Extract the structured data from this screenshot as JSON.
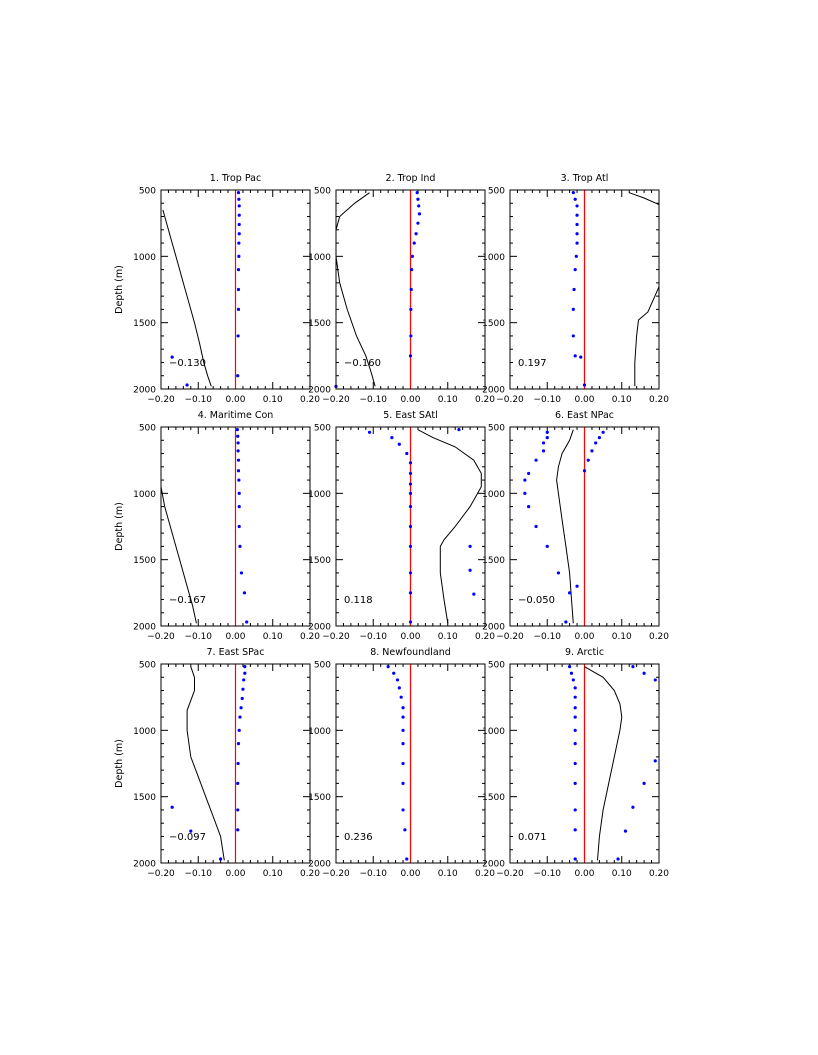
{
  "chart_data": [
    {
      "type": "line",
      "title": "1. Trop Pac",
      "annotation": "−0.130",
      "ylabel": "Depth (m)",
      "xlim": [
        -0.2,
        0.2
      ],
      "ylim": [
        2000,
        500
      ],
      "xticks": [
        "−0.20",
        "−0.10",
        "0.00",
        "0.10",
        "0.20"
      ],
      "yticks": [
        "500",
        "1000",
        "1500",
        "2000"
      ],
      "line": {
        "x": [
          -0.195,
          -0.185,
          -0.17,
          -0.155,
          -0.14,
          -0.125,
          -0.11,
          -0.097,
          -0.085,
          -0.075,
          -0.065
        ],
        "y": [
          650,
          750,
          900,
          1050,
          1200,
          1350,
          1500,
          1650,
          1800,
          1900,
          1980
        ]
      },
      "dots": {
        "x": [
          0.008,
          0.009,
          0.01,
          0.01,
          0.01,
          0.01,
          0.009,
          0.009,
          0.008,
          0.008,
          0.008,
          0.007,
          0.006,
          -0.17,
          -0.13
        ],
        "y": [
          520,
          570,
          620,
          690,
          760,
          830,
          900,
          1000,
          1100,
          1250,
          1400,
          1600,
          1900,
          1760,
          1970
        ]
      }
    },
    {
      "type": "line",
      "title": "2. Trop Ind",
      "annotation": "−0.160",
      "ylabel": "",
      "xlim": [
        -0.2,
        0.2
      ],
      "ylim": [
        2000,
        500
      ],
      "xticks": [
        "−0.20",
        "−0.10",
        "0.00",
        "0.10",
        "0.20"
      ],
      "yticks": [
        "500",
        "1000",
        "1500",
        "2000"
      ],
      "line": {
        "x": [
          -0.11,
          -0.15,
          -0.19,
          -0.2,
          -0.2,
          -0.19,
          -0.17,
          -0.145,
          -0.12,
          -0.105,
          -0.095
        ],
        "y": [
          520,
          600,
          700,
          800,
          1000,
          1200,
          1400,
          1600,
          1750,
          1880,
          1980
        ]
      },
      "dots": {
        "x": [
          0.018,
          0.02,
          0.022,
          0.024,
          0.02,
          0.015,
          0.01,
          0.005,
          0.003,
          0.002,
          0.001,
          0.001,
          0.0,
          -0.2
        ],
        "y": [
          520,
          570,
          620,
          680,
          750,
          830,
          900,
          1000,
          1100,
          1250,
          1400,
          1600,
          1750,
          1980
        ]
      }
    },
    {
      "type": "line",
      "title": "3. Trop Atl",
      "annotation": "0.197",
      "ylabel": "",
      "xlim": [
        -0.2,
        0.2
      ],
      "ylim": [
        2000,
        500
      ],
      "xticks": [
        "−0.20",
        "−0.10",
        "0.00",
        "0.10",
        "0.20"
      ],
      "yticks": [
        "500",
        "1000",
        "1500",
        "2000"
      ],
      "line1": {
        "x": [
          0.12,
          0.16,
          0.2
        ],
        "y": [
          520,
          560,
          610
        ]
      },
      "line2": {
        "x": [
          0.2,
          0.17,
          0.145,
          0.14,
          0.135,
          0.135
        ],
        "y": [
          1230,
          1420,
          1480,
          1600,
          1800,
          1980
        ]
      },
      "dots": {
        "x": [
          -0.03,
          -0.025,
          -0.02,
          -0.02,
          -0.02,
          -0.02,
          -0.02,
          -0.022,
          -0.025,
          -0.028,
          -0.03,
          -0.03,
          -0.025,
          -0.01,
          0.0
        ],
        "y": [
          520,
          570,
          620,
          690,
          760,
          830,
          900,
          1000,
          1100,
          1250,
          1400,
          1600,
          1750,
          1760,
          1970
        ]
      }
    },
    {
      "type": "line",
      "title": "4. Maritime Con",
      "annotation": "−0.167",
      "ylabel": "Depth (m)",
      "xlim": [
        -0.2,
        0.2
      ],
      "ylim": [
        2000,
        500
      ],
      "xticks": [
        "−0.20",
        "−0.10",
        "0.00",
        "0.10",
        "0.20"
      ],
      "yticks": [
        "500",
        "1000",
        "1500",
        "2000"
      ],
      "line": {
        "x": [
          -0.2,
          -0.19,
          -0.175,
          -0.16,
          -0.145,
          -0.13,
          -0.115,
          -0.105
        ],
        "y": [
          950,
          1100,
          1250,
          1400,
          1550,
          1700,
          1850,
          1980
        ]
      },
      "dots": {
        "x": [
          0.005,
          0.006,
          0.007,
          0.007,
          0.008,
          0.008,
          0.009,
          0.01,
          0.01,
          0.01,
          0.012,
          0.016,
          0.024,
          0.03
        ],
        "y": [
          520,
          570,
          620,
          680,
          750,
          830,
          900,
          1000,
          1100,
          1250,
          1400,
          1600,
          1750,
          1970
        ]
      }
    },
    {
      "type": "line",
      "title": "5. East SAtl",
      "annotation": "0.118",
      "ylabel": "",
      "xlim": [
        -0.2,
        0.2
      ],
      "ylim": [
        2000,
        500
      ],
      "xticks": [
        "−0.20",
        "−0.10",
        "0.00",
        "0.10",
        "0.20"
      ],
      "yticks": [
        "500",
        "1000",
        "1500",
        "2000"
      ],
      "line": {
        "x": [
          0.02,
          0.06,
          0.12,
          0.17,
          0.19,
          0.19,
          0.16,
          0.12,
          0.09,
          0.08,
          0.08,
          0.09,
          0.1
        ],
        "y": [
          520,
          580,
          650,
          750,
          850,
          950,
          1100,
          1250,
          1350,
          1400,
          1600,
          1800,
          1980
        ]
      },
      "dots": {
        "x": [
          -0.11,
          -0.05,
          -0.03,
          -0.01,
          0.0,
          0.0,
          0.0,
          0.0,
          0.0,
          0.0,
          0.0,
          0.0,
          0.0,
          0.0,
          0.13,
          0.16,
          0.16,
          0.17
        ],
        "y": [
          540,
          580,
          630,
          700,
          770,
          850,
          930,
          1000,
          1100,
          1250,
          1400,
          1600,
          1750,
          1970,
          520,
          1400,
          1580,
          1760
        ]
      }
    },
    {
      "type": "line",
      "title": "6. East NPac",
      "annotation": "−0.050",
      "ylabel": "",
      "xlim": [
        -0.2,
        0.2
      ],
      "ylim": [
        2000,
        500
      ],
      "xticks": [
        "−0.20",
        "−0.10",
        "0.00",
        "0.10",
        "0.20"
      ],
      "yticks": [
        "500",
        "1000",
        "1500",
        "2000"
      ],
      "line": {
        "x": [
          -0.03,
          -0.04,
          -0.06,
          -0.07,
          -0.075,
          -0.07,
          -0.06,
          -0.05,
          -0.04,
          -0.035,
          -0.03
        ],
        "y": [
          520,
          600,
          700,
          800,
          900,
          1000,
          1200,
          1400,
          1600,
          1800,
          1980
        ]
      },
      "dots": {
        "x": [
          -0.1,
          -0.1,
          -0.11,
          -0.11,
          -0.13,
          -0.15,
          -0.16,
          -0.16,
          -0.15,
          -0.13,
          -0.1,
          -0.07,
          -0.04,
          0.05,
          0.04,
          0.03,
          0.02,
          0.01,
          0.0,
          -0.02,
          -0.05
        ],
        "y": [
          540,
          580,
          620,
          680,
          750,
          850,
          900,
          1000,
          1100,
          1250,
          1400,
          1600,
          1750,
          540,
          580,
          620,
          680,
          750,
          830,
          1700,
          1970
        ]
      }
    },
    {
      "type": "line",
      "title": "7. East SPac",
      "annotation": "−0.097",
      "ylabel": "Depth (m)",
      "xlim": [
        -0.2,
        0.2
      ],
      "ylim": [
        2000,
        500
      ],
      "xticks": [
        "−0.20",
        "−0.10",
        "0.00",
        "0.10",
        "0.20"
      ],
      "yticks": [
        "500",
        "1000",
        "1500",
        "2000"
      ],
      "line": {
        "x": [
          -0.12,
          -0.11,
          -0.11,
          -0.13,
          -0.13,
          -0.12,
          -0.1,
          -0.08,
          -0.06,
          -0.04,
          -0.03
        ],
        "y": [
          520,
          600,
          700,
          850,
          1000,
          1200,
          1350,
          1500,
          1650,
          1800,
          1980
        ]
      },
      "dots": {
        "x": [
          0.025,
          0.025,
          0.022,
          0.02,
          0.018,
          0.015,
          0.012,
          0.01,
          0.008,
          0.007,
          0.006,
          0.006,
          0.006,
          -0.17,
          -0.12,
          -0.04
        ],
        "y": [
          520,
          570,
          620,
          690,
          760,
          830,
          900,
          1000,
          1100,
          1250,
          1400,
          1600,
          1750,
          1580,
          1760,
          1970
        ]
      }
    },
    {
      "type": "line",
      "title": "8. Newfoundland",
      "annotation": "0.236",
      "ylabel": "",
      "xlim": [
        -0.2,
        0.2
      ],
      "ylim": [
        2000,
        500
      ],
      "xticks": [
        "−0.20",
        "−0.10",
        "0.00",
        "0.10",
        "0.20"
      ],
      "yticks": [
        "500",
        "1000",
        "1500",
        "2000"
      ],
      "dots": {
        "x": [
          -0.06,
          -0.045,
          -0.035,
          -0.03,
          -0.025,
          -0.02,
          -0.02,
          -0.02,
          -0.02,
          -0.02,
          -0.02,
          -0.02,
          -0.015,
          -0.01
        ],
        "y": [
          520,
          570,
          620,
          680,
          750,
          830,
          900,
          1000,
          1100,
          1250,
          1400,
          1600,
          1750,
          1970
        ]
      }
    },
    {
      "type": "line",
      "title": "9. Arctic",
      "annotation": "0.071",
      "ylabel": "",
      "xlim": [
        -0.2,
        0.2
      ],
      "ylim": [
        2000,
        500
      ],
      "xticks": [
        "−0.20",
        "−0.10",
        "0.00",
        "0.10",
        "0.20"
      ],
      "yticks": [
        "500",
        "1000",
        "1500",
        "2000"
      ],
      "line": {
        "x": [
          0.0,
          0.05,
          0.08,
          0.095,
          0.1,
          0.095,
          0.08,
          0.065,
          0.05,
          0.04,
          0.035
        ],
        "y": [
          520,
          600,
          700,
          800,
          900,
          1000,
          1200,
          1400,
          1600,
          1800,
          1980
        ]
      },
      "dots": {
        "x": [
          -0.04,
          -0.035,
          -0.03,
          -0.025,
          -0.025,
          -0.025,
          -0.025,
          -0.025,
          -0.025,
          -0.025,
          -0.025,
          -0.025,
          -0.025,
          -0.025,
          0.13,
          0.16,
          0.19,
          0.19,
          0.16,
          0.13,
          0.11,
          0.09
        ],
        "y": [
          520,
          570,
          620,
          680,
          750,
          830,
          900,
          1000,
          1100,
          1250,
          1400,
          1600,
          1750,
          1970,
          520,
          570,
          620,
          1230,
          1400,
          1580,
          1760,
          1970
        ]
      }
    }
  ]
}
